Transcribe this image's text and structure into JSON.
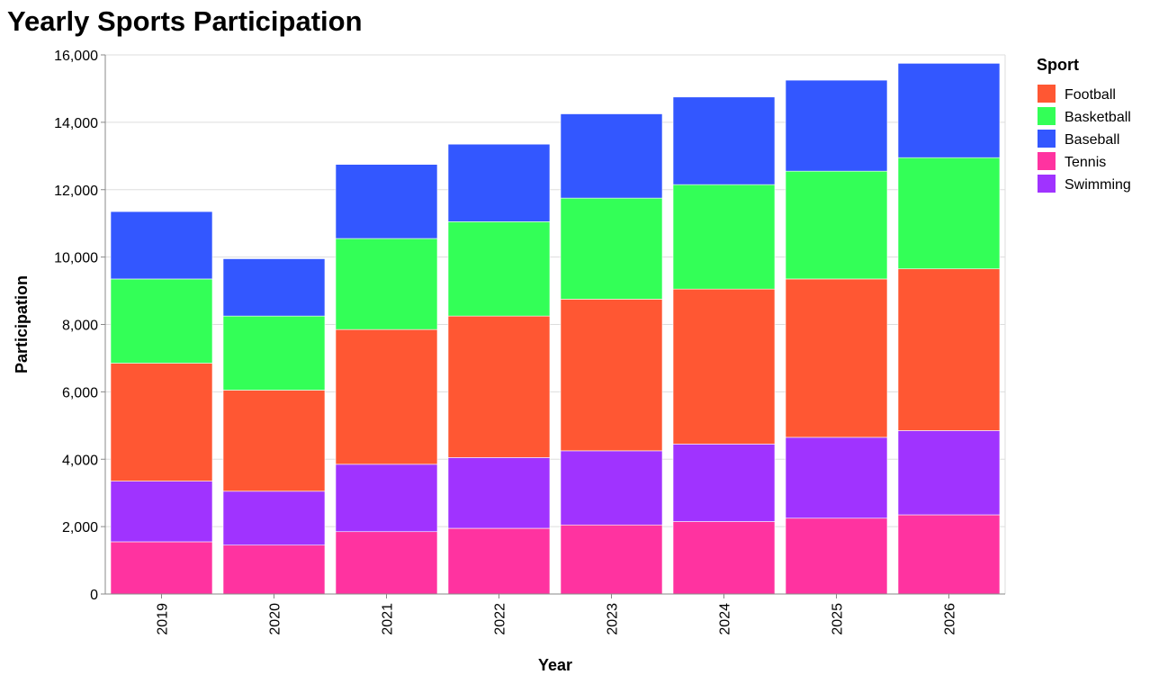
{
  "chart_data": {
    "type": "bar",
    "stacked": true,
    "title": "Yearly Sports Participation",
    "xlabel": "Year",
    "ylabel": "Participation",
    "ylim": [
      0,
      16000
    ],
    "yticks": [
      "0",
      "2,000",
      "4,000",
      "6,000",
      "8,000",
      "10,000",
      "12,000",
      "14,000",
      "16,000"
    ],
    "categories": [
      "2019",
      "2020",
      "2021",
      "2022",
      "2023",
      "2024",
      "2025",
      "2026"
    ],
    "legend": {
      "title": "Sport",
      "position": "top-right"
    },
    "grid": true,
    "series": [
      {
        "name": "Tennis",
        "color": "#FF33A0",
        "values": [
          1550,
          1450,
          1850,
          1950,
          2050,
          2150,
          2250,
          2350
        ]
      },
      {
        "name": "Swimming",
        "color": "#A033FF",
        "values": [
          1800,
          1600,
          2000,
          2100,
          2200,
          2300,
          2400,
          2500
        ]
      },
      {
        "name": "Football",
        "color": "#FF5733",
        "values": [
          3500,
          3000,
          4000,
          4200,
          4500,
          4600,
          4700,
          4800
        ]
      },
      {
        "name": "Basketball",
        "color": "#33FF57",
        "values": [
          2500,
          2200,
          2700,
          2800,
          3000,
          3100,
          3200,
          3300
        ]
      },
      {
        "name": "Baseball",
        "color": "#3357FF",
        "values": [
          2000,
          1700,
          2200,
          2300,
          2500,
          2600,
          2700,
          2800
        ]
      }
    ],
    "legend_order": [
      "Football",
      "Basketball",
      "Baseball",
      "Tennis",
      "Swimming"
    ]
  }
}
